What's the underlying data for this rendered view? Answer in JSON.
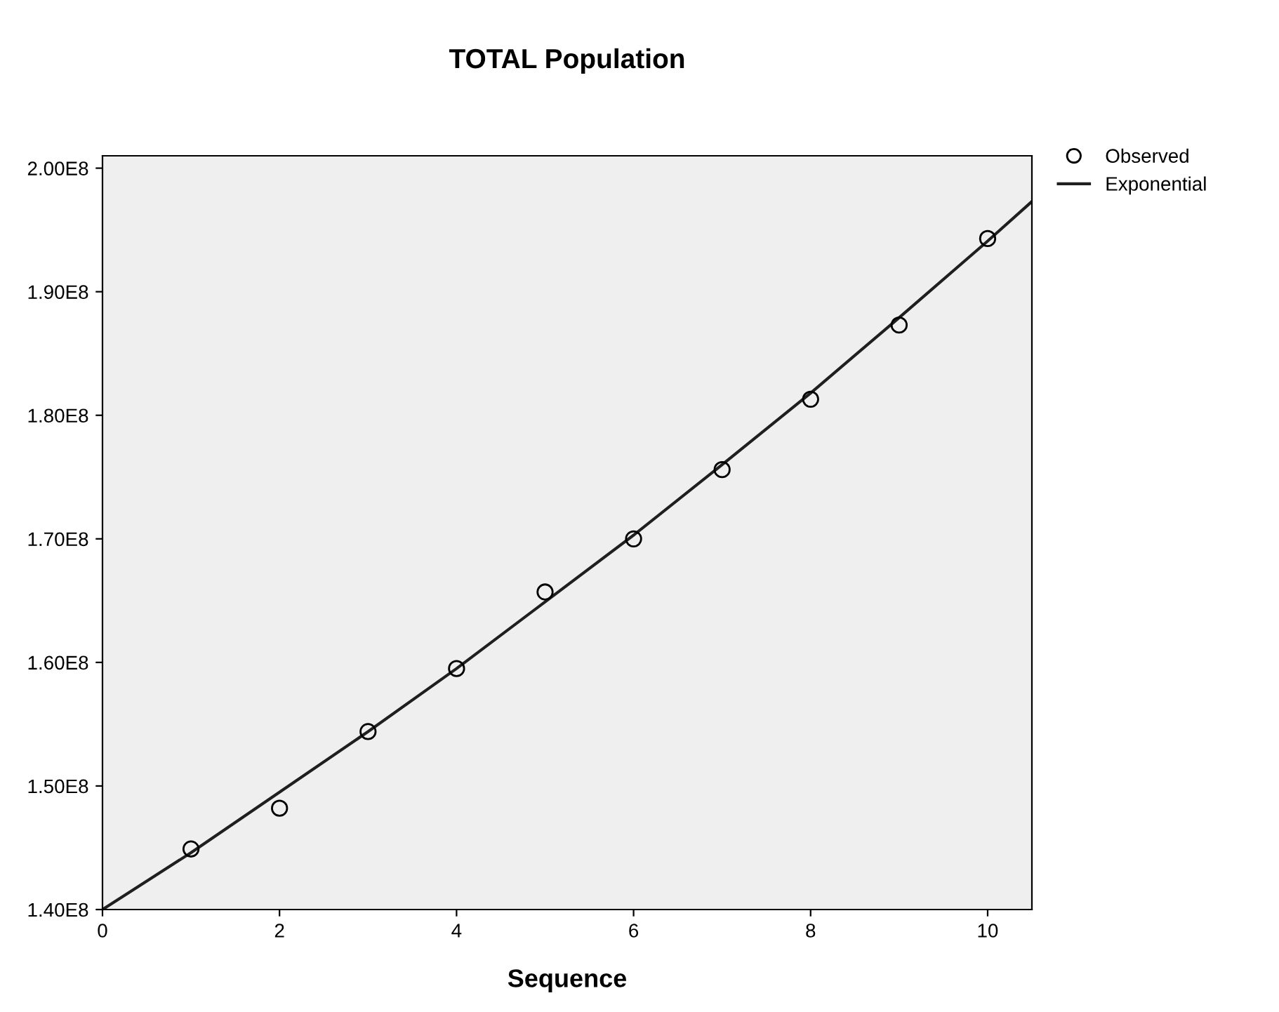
{
  "chart_data": {
    "type": "scatter",
    "title": "TOTAL Population",
    "xlabel": "Sequence",
    "xlim": [
      0,
      10.5
    ],
    "xticks": [
      0,
      2,
      4,
      6,
      8,
      10
    ],
    "ylim": [
      140000000,
      201000000
    ],
    "yticks": [
      {
        "value": 140000000,
        "label": "1.40E8"
      },
      {
        "value": 150000000,
        "label": "1.50E8"
      },
      {
        "value": 160000000,
        "label": "1.60E8"
      },
      {
        "value": 170000000,
        "label": "1.70E8"
      },
      {
        "value": 180000000,
        "label": "1.80E8"
      },
      {
        "value": 190000000,
        "label": "1.90E8"
      },
      {
        "value": 200000000,
        "label": "2.00E8"
      }
    ],
    "grid": false,
    "legend": "top right",
    "series": [
      {
        "name": "Observed",
        "marker": "circle",
        "color": "#000000",
        "x": [
          1,
          2,
          3,
          4,
          5,
          6,
          7,
          8,
          9,
          10
        ],
        "values": [
          144900000,
          148200000,
          154400000,
          159500000,
          165700000,
          170000000,
          175600000,
          181300000,
          187300000,
          194300000
        ]
      },
      {
        "name": "Exponential",
        "type": "line",
        "marker": "none",
        "line_style": "solid",
        "color": "#1f1f1f",
        "x": [
          0,
          1,
          2,
          3,
          4,
          5,
          6,
          7,
          8,
          9,
          10,
          10.5
        ],
        "values": [
          140000000,
          144600000,
          149500000,
          154400000,
          159500000,
          164900000,
          170300000,
          176000000,
          181800000,
          187900000,
          194100000,
          197300000
        ]
      }
    ]
  }
}
